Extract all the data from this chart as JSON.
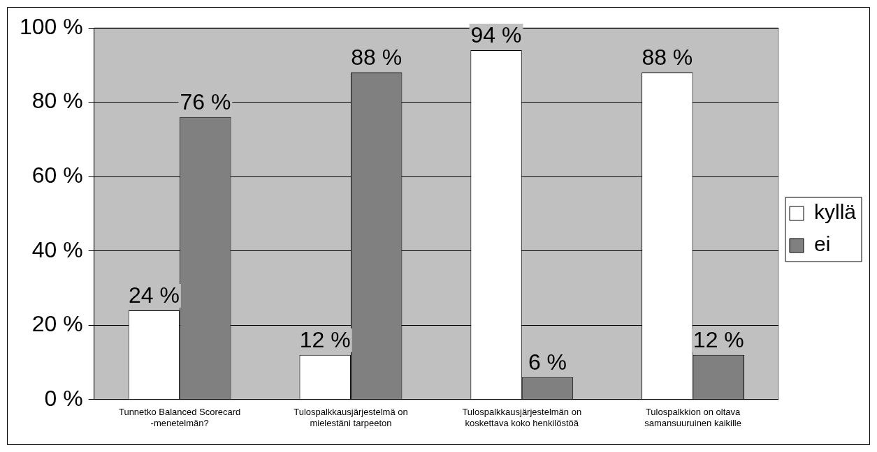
{
  "chart_data": {
    "type": "bar",
    "categories": [
      "Tunnetko Balanced Scorecard -menetelmän?",
      "Tulospalkkausjärjestelmä on mielestäni tarpeeton",
      "Tulospalkkausjärjestelmän on koskettava koko henkilöstöä",
      "Tulospalkkion on oltava samansuuruinen kaikille"
    ],
    "series": [
      {
        "name": "kyllä",
        "color": "#ffffff",
        "values": [
          24,
          12,
          94,
          88
        ],
        "value_labels": [
          "24 %",
          "12 %",
          "94 %",
          "88 %"
        ]
      },
      {
        "name": "ei",
        "color": "#808080",
        "values": [
          76,
          88,
          6,
          12
        ],
        "value_labels": [
          "76 %",
          "88 %",
          "6 %",
          "12 %"
        ]
      }
    ],
    "ylim": [
      0,
      100
    ],
    "yticks": [
      {
        "value": 0,
        "label": "0 %"
      },
      {
        "value": 20,
        "label": "20 %"
      },
      {
        "value": 40,
        "label": "40 %"
      },
      {
        "value": 60,
        "label": "60 %"
      },
      {
        "value": 80,
        "label": "80 %"
      },
      {
        "value": 100,
        "label": "100 %"
      }
    ],
    "grid": "y",
    "legend": "right"
  }
}
